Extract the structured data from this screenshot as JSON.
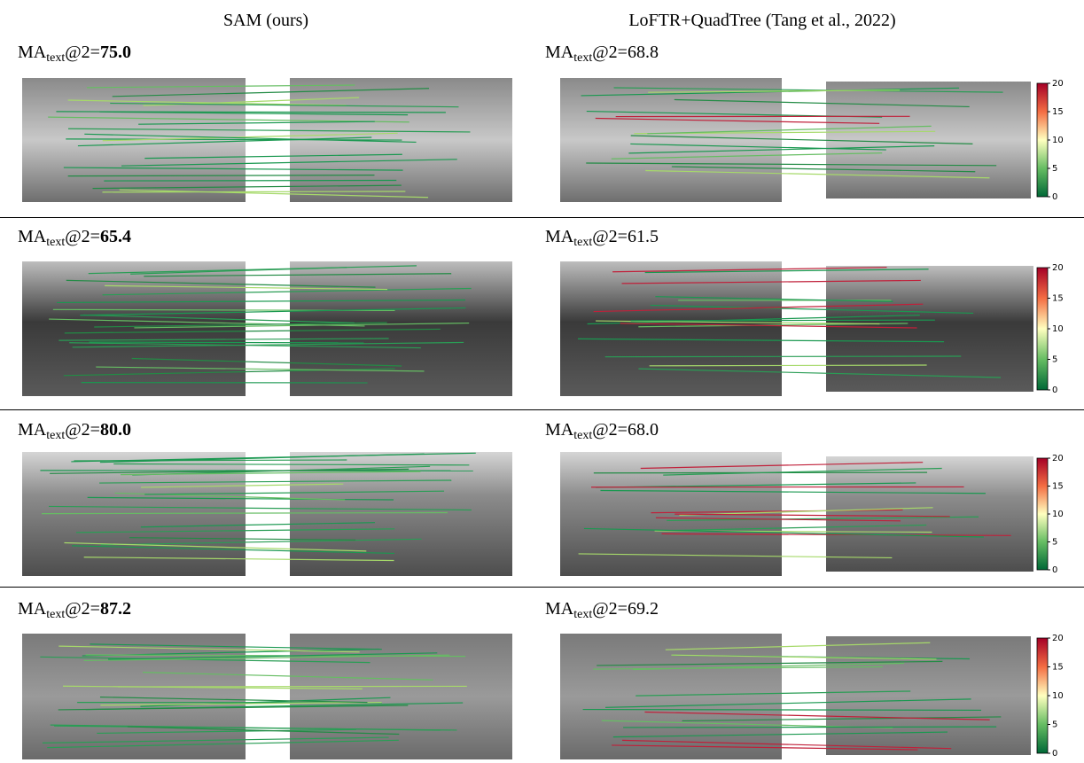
{
  "columns": [
    "SAM (ours)",
    "LoFTR+QuadTree (Tang et al., 2022)"
  ],
  "metric": {
    "name": "MA",
    "subscript": "text",
    "suffix": "@2="
  },
  "rows": [
    {
      "sam": "75.0",
      "baseline": "68.8"
    },
    {
      "sam": "65.4",
      "baseline": "61.5"
    },
    {
      "sam": "80.0",
      "baseline": "68.0"
    },
    {
      "sam": "87.2",
      "baseline": "69.2"
    }
  ],
  "colorbar": {
    "ticks": [
      0,
      5,
      10,
      15,
      20
    ]
  }
}
